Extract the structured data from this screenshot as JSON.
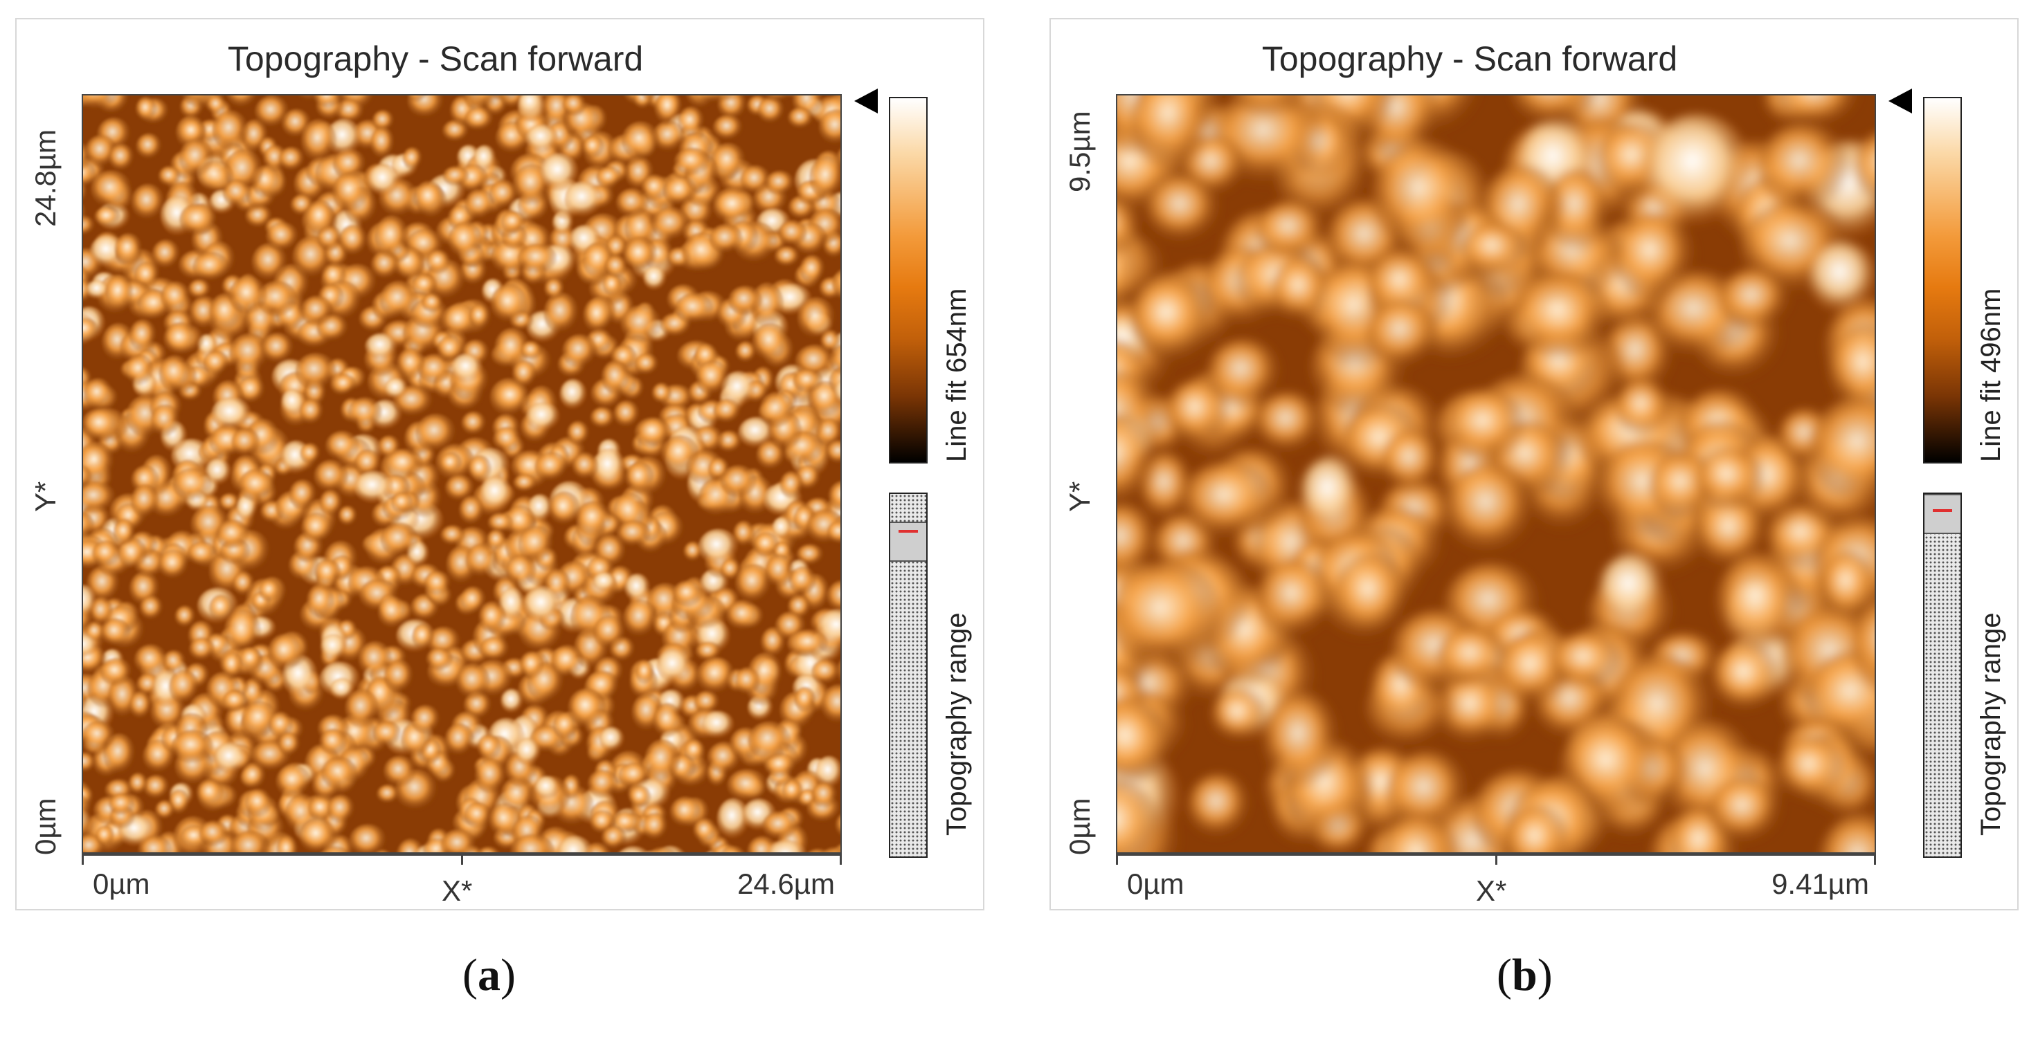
{
  "panels": [
    {
      "id": "a",
      "title": "Topography - Scan forward",
      "y_axis": {
        "top": "24.8µm",
        "middle": "Y*",
        "bottom": "0µm"
      },
      "x_axis": {
        "left": "0µm",
        "middle": "X*",
        "right": "24.6µm"
      },
      "colorbar_label": "Line fit 654nm",
      "range_label": "Topography range",
      "caption_letter": "a"
    },
    {
      "id": "b",
      "title": "Topography - Scan forward",
      "y_axis": {
        "top": "9.5µm",
        "middle": "Y*",
        "bottom": "0µm"
      },
      "x_axis": {
        "left": "0µm",
        "middle": "X*",
        "right": "9.41µm"
      },
      "colorbar_label": "Line fit 496nm",
      "range_label": "Topography range",
      "caption_letter": "b"
    }
  ],
  "colors": {
    "low": "#000000",
    "mid": "#e67a10",
    "high": "#ffffff",
    "range_marker": "#e03030"
  }
}
